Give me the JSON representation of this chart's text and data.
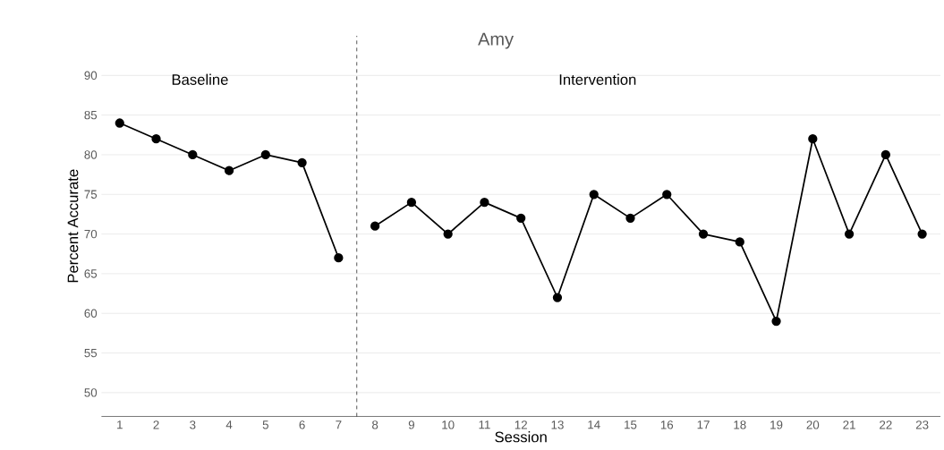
{
  "chart_data": {
    "type": "line",
    "title": "Amy",
    "xlabel": "Session",
    "ylabel": "Percent Accurate",
    "annotations": [
      "Baseline",
      "Intervention"
    ],
    "series": [
      {
        "color": "#000000",
        "x": [
          1,
          2,
          3,
          4,
          5,
          6,
          7
        ],
        "values": [
          84,
          82,
          80,
          78,
          80,
          79,
          67
        ]
      },
      {
        "color": "#000000",
        "x": [
          8,
          9,
          10,
          11,
          12,
          13,
          14,
          15,
          16,
          17,
          18,
          19,
          20,
          21,
          22,
          23
        ],
        "values": [
          71,
          74,
          70,
          74,
          72,
          62,
          75,
          72,
          75,
          70,
          69,
          59,
          82,
          70,
          80,
          70
        ]
      }
    ],
    "xlim": [
      0.5,
      23.5
    ],
    "xticks": [
      1,
      2,
      3,
      4,
      5,
      6,
      7,
      8,
      9,
      10,
      11,
      12,
      13,
      14,
      15,
      16,
      17,
      18,
      19,
      20,
      21,
      22,
      23
    ],
    "ylim": [
      47,
      95
    ],
    "yticks": [
      50,
      55,
      60,
      65,
      70,
      75,
      80,
      85,
      90
    ],
    "ref_lines": [
      {
        "axis": "x",
        "value": 7.5,
        "color": "#000000",
        "line_style": "dashed"
      }
    ],
    "grid": "y",
    "marker": "circle",
    "line_style": "solid"
  }
}
